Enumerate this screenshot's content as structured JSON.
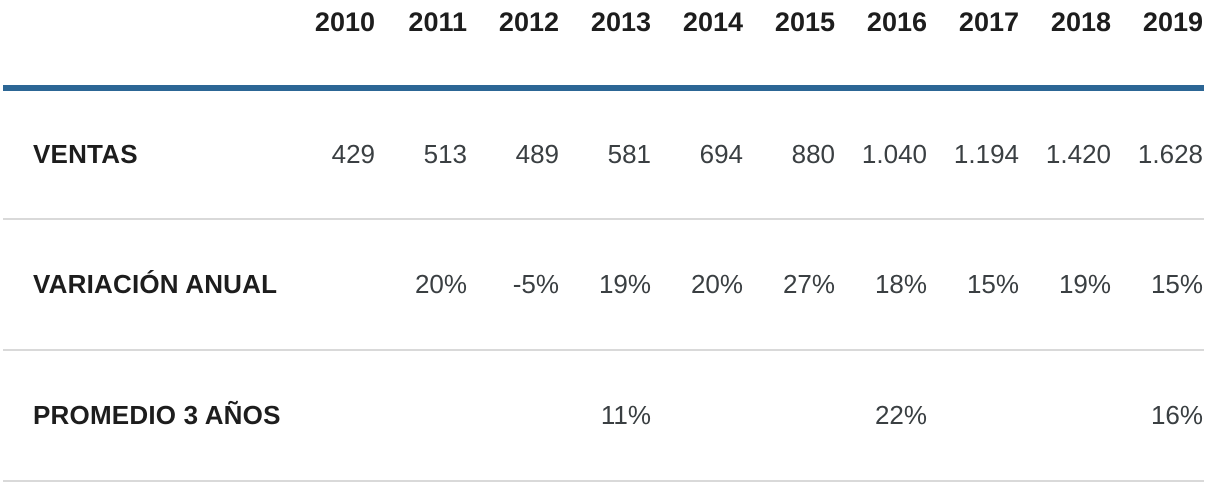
{
  "colors": {
    "header_rule": "#2c6695",
    "row_divider": "#d9d9d9",
    "header_text": "#1d1d1d",
    "value_text": "#3a3f42",
    "background": "#ffffff"
  },
  "table": {
    "label_header": "",
    "years": [
      "2010",
      "2011",
      "2012",
      "2013",
      "2014",
      "2015",
      "2016",
      "2017",
      "2018",
      "2019"
    ],
    "rows": [
      {
        "label": "VENTAS",
        "values": [
          "429",
          "513",
          "489",
          "581",
          "694",
          "880",
          "1.040",
          "1.194",
          "1.420",
          "1.628"
        ]
      },
      {
        "label": "VARIACIÓN ANUAL",
        "values": [
          "",
          "20%",
          "-5%",
          "19%",
          "20%",
          "27%",
          "18%",
          "15%",
          "19%",
          "15%"
        ]
      },
      {
        "label": "PROMEDIO 3 AÑOS",
        "values": [
          "",
          "",
          "",
          "11%",
          "",
          "",
          "22%",
          "",
          "",
          "16%"
        ]
      }
    ]
  },
  "chart_data": {
    "type": "table",
    "columns": [
      "",
      "2010",
      "2011",
      "2012",
      "2013",
      "2014",
      "2015",
      "2016",
      "2017",
      "2018",
      "2019"
    ],
    "rows": [
      [
        "VENTAS",
        "429",
        "513",
        "489",
        "581",
        "694",
        "880",
        "1.040",
        "1.194",
        "1.420",
        "1.628"
      ],
      [
        "VARIACIÓN ANUAL",
        "",
        "20%",
        "-5%",
        "19%",
        "20%",
        "27%",
        "18%",
        "15%",
        "19%",
        "15%"
      ],
      [
        "PROMEDIO 3 AÑOS",
        "",
        "",
        "",
        "11%",
        "",
        "",
        "22%",
        "",
        "",
        "16%"
      ]
    ],
    "x": [
      2010,
      2011,
      2012,
      2013,
      2014,
      2015,
      2016,
      2017,
      2018,
      2019
    ],
    "series": [
      {
        "name": "VENTAS",
        "values": [
          429,
          513,
          489,
          581,
          694,
          880,
          1040,
          1194,
          1420,
          1628
        ]
      },
      {
        "name": "VARIACIÓN ANUAL (%)",
        "values": [
          null,
          20,
          -5,
          19,
          20,
          27,
          18,
          15,
          19,
          15
        ]
      },
      {
        "name": "PROMEDIO 3 AÑOS (%)",
        "values": [
          null,
          null,
          null,
          11,
          null,
          null,
          22,
          null,
          null,
          16
        ]
      }
    ]
  }
}
